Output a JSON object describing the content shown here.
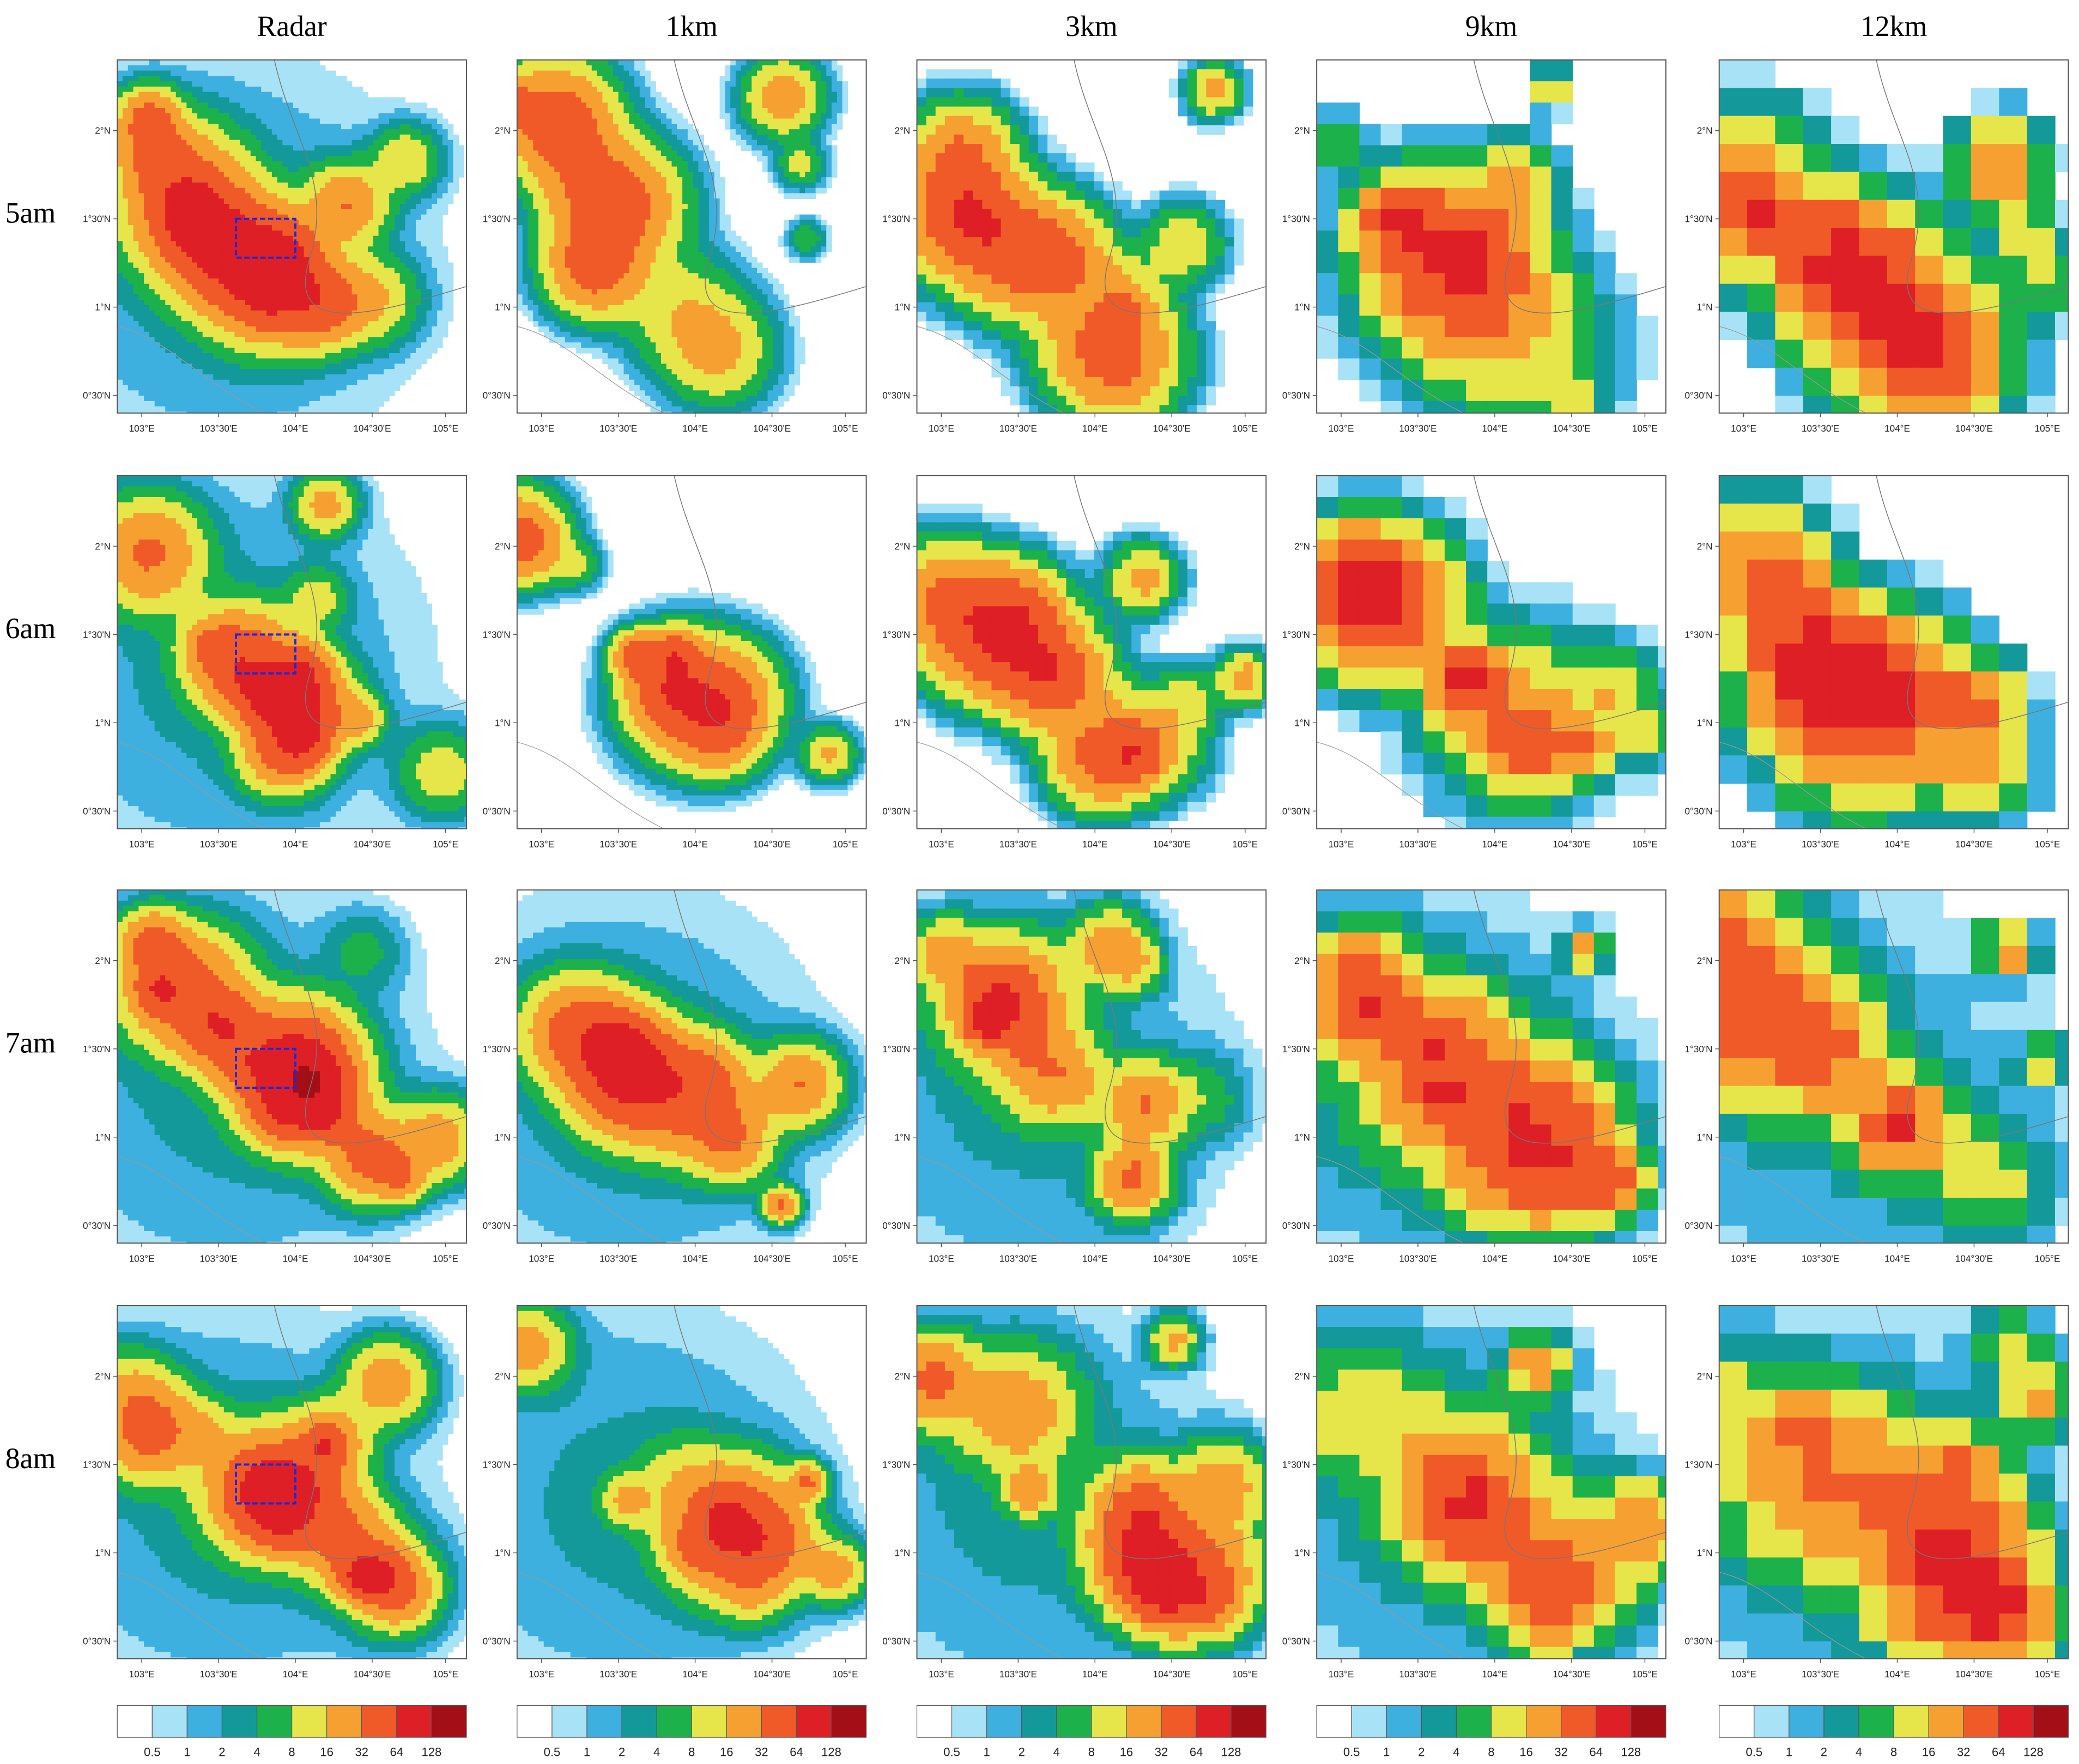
{
  "columns": [
    "Radar",
    "1km",
    "3km",
    "9km",
    "12km"
  ],
  "rows": [
    "5am",
    "6am",
    "7am",
    "8am"
  ],
  "lon_ticks": [
    "103°E",
    "103°30'E",
    "104°E",
    "104°30'E",
    "105°E"
  ],
  "lat_ticks": [
    "2°N",
    "1°30'N",
    "1°N",
    "0°30'N"
  ],
  "colorbar": {
    "levels": [
      0.5,
      1,
      2,
      4,
      8,
      16,
      32,
      64,
      128
    ],
    "colors": [
      "#ffffff",
      "#a8e2f6",
      "#3db0e0",
      "#14999a",
      "#1db14b",
      "#e6e54a",
      "#f7a032",
      "#f05a28",
      "#de1f26",
      "#a30f16"
    ]
  }
}
